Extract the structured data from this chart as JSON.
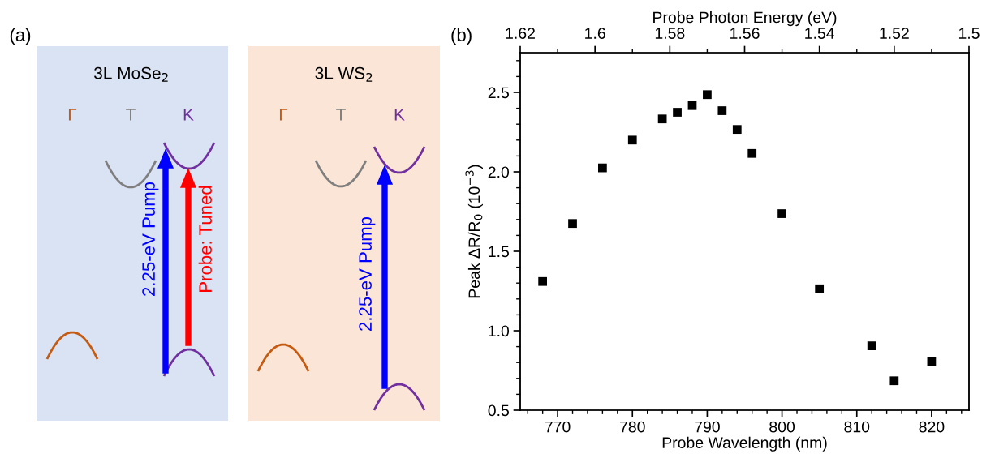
{
  "chart_data": [
    {
      "type": "other",
      "annotations": [
        "(a)",
        "3L MoSe$_{2}$",
        "Γ",
        "T",
        "K",
        "2.25-eV Pump",
        "Probe: Tuned",
        "3L WS$_{2}$",
        "Γ",
        "T",
        "K",
        "2.25-eV Pump"
      ]
    },
    {
      "type": "scatter",
      "annotations": [
        "(b)"
      ],
      "xlabel": "Probe Wavelength (nm)",
      "ylabel": "Peak ΔR/R$_{0}$ (10$^{−3}$)",
      "x2label": "Probe Photon Energy (eV)",
      "x": [
        768,
        772,
        776,
        780,
        784,
        786,
        788,
        790,
        792,
        794,
        796,
        800,
        805,
        812,
        815,
        820
      ],
      "series": [
        {
          "color": "#000000",
          "values": [
            1.31,
            1.675,
            2.025,
            2.2,
            2.333,
            2.375,
            2.417,
            2.486,
            2.385,
            2.267,
            2.116,
            1.737,
            1.264,
            0.905,
            0.685,
            0.808
          ]
        }
      ],
      "marker": "square",
      "grid": false,
      "legend": false,
      "xlim": [
        765,
        825
      ],
      "xticks": [
        770,
        780,
        790,
        800,
        810,
        820
      ],
      "ylim": [
        0.5,
        2.75
      ],
      "yticks": [
        {
          "value": 0.5,
          "label": "0.5"
        },
        {
          "value": 1.0,
          "label": "1.0"
        },
        {
          "value": 1.5,
          "label": "1.5"
        },
        {
          "value": 2.0,
          "label": "2.0"
        },
        {
          "value": 2.5,
          "label": "2.5"
        }
      ],
      "x2lim": [
        1.62,
        1.5
      ],
      "x2ticks": [
        1.62,
        1.6,
        1.58,
        1.56,
        1.54,
        1.52,
        1.5
      ]
    }
  ]
}
